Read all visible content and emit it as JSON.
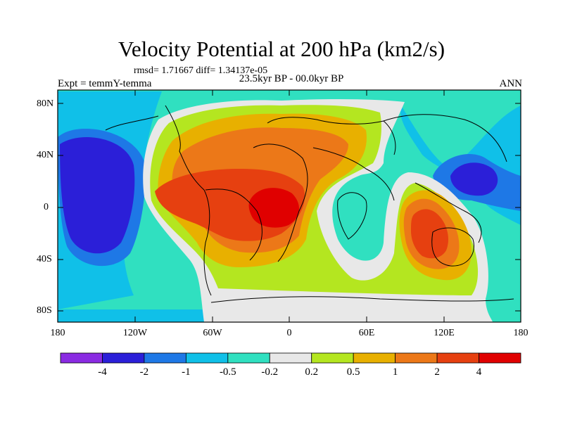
{
  "title": "Velocity Potential at 200 hPa (km2/s)",
  "stats": "rmsd= 1.71667 diff= 1.34137e-05",
  "experiment": "Expt = temmY-temma",
  "period": "23.5kyr BP - 00.0kyr BP",
  "season": "ANN",
  "y_ticks": [
    "80N",
    "40N",
    "0",
    "40S",
    "80S"
  ],
  "x_ticks": [
    "180",
    "120W",
    "60W",
    "0",
    "60E",
    "120E",
    "180"
  ],
  "colorbar_labels": [
    "-4",
    "-2",
    "-1",
    "-0.5",
    "-0.2",
    "0.2",
    "0.5",
    "1",
    "2",
    "4"
  ],
  "colorbar_colors": [
    "#8a2be2",
    "#2b1fd8",
    "#1e78e6",
    "#10c0e8",
    "#30e0c0",
    "#e8e8e8",
    "#b4e620",
    "#e8b000",
    "#ec7818",
    "#e64010",
    "#e00000"
  ],
  "map_colors": {
    "ocean_neutral": "#30e0c0",
    "neutral": "#e8e8e8",
    "pos_weak": "#b4e620",
    "pos_1": "#e8b000",
    "pos_2": "#ec7818",
    "pos_4": "#e64010",
    "pos_max": "#e00000",
    "neg_weak": "#10c0e8",
    "neg_1": "#1e78e6",
    "neg_2": "#2b1fd8"
  }
}
